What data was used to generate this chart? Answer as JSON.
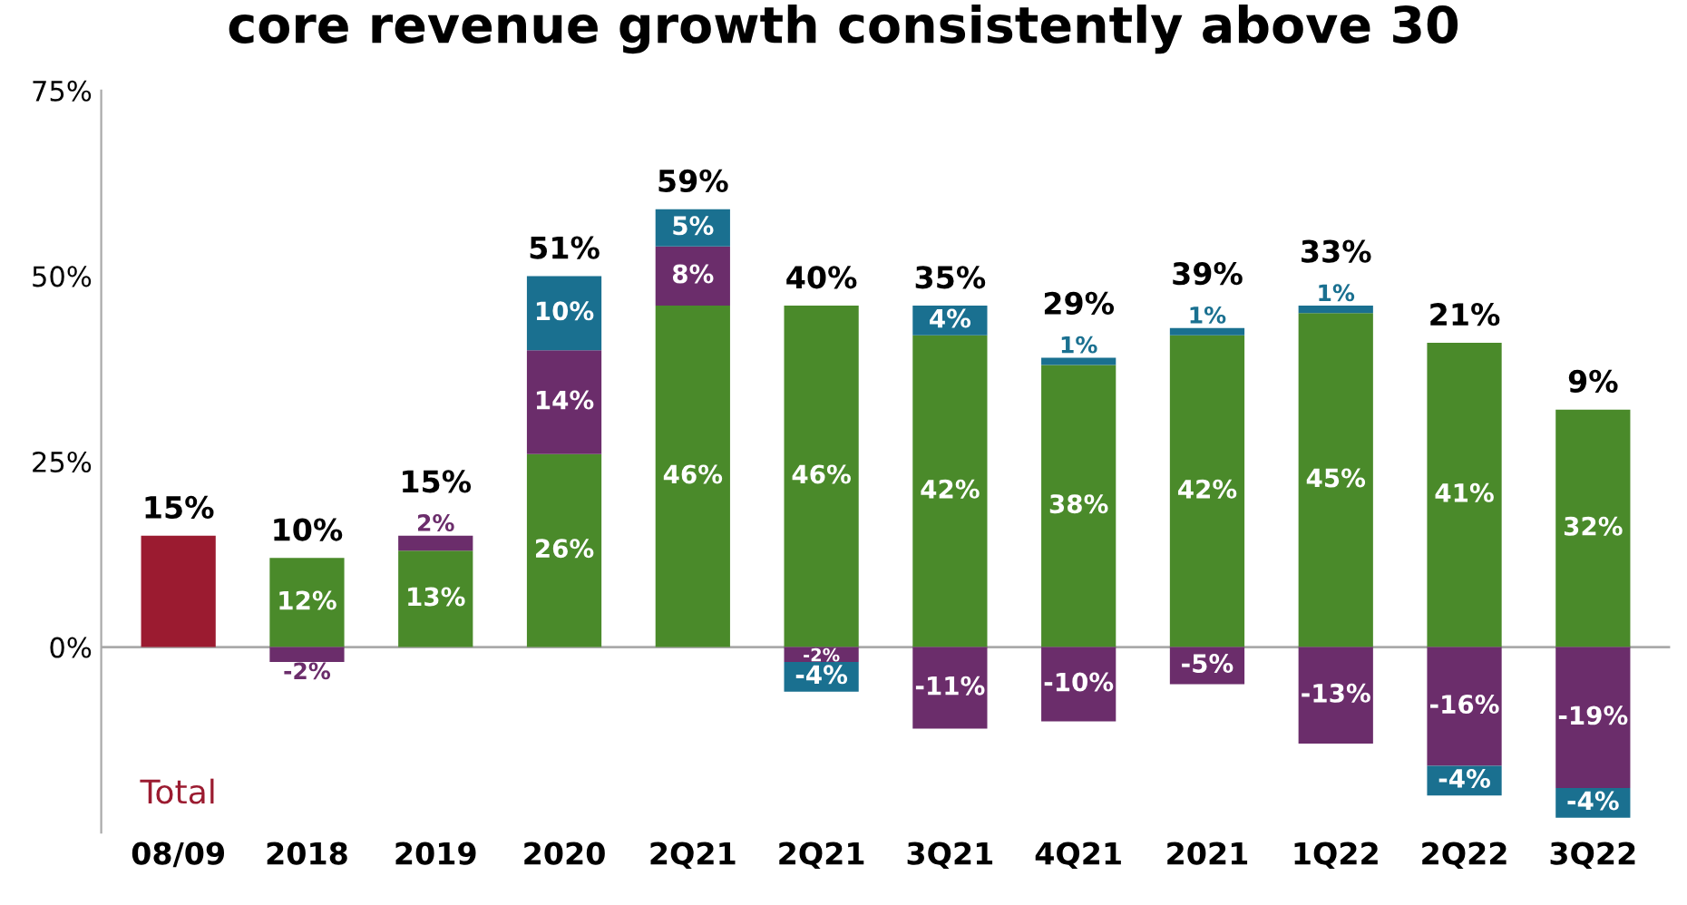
{
  "chart_data": {
    "type": "bar",
    "stacked": true,
    "title": "core revenue growth consistently above 30",
    "categories": [
      "08/09",
      "2018",
      "2019",
      "2020",
      "2Q21",
      "2Q21",
      "3Q21",
      "4Q21",
      "2021",
      "1Q22",
      "2Q22",
      "3Q22"
    ],
    "series": [
      {
        "name": "Total",
        "color": "#9b1b30",
        "values": [
          15,
          null,
          null,
          null,
          null,
          null,
          null,
          null,
          null,
          null,
          null,
          null
        ],
        "value_labels": [
          null,
          null,
          null,
          null,
          null,
          null,
          null,
          null,
          null,
          null,
          null,
          null
        ]
      },
      {
        "color": "#4a8a2a",
        "values": [
          null,
          12,
          13,
          26,
          46,
          46,
          42,
          38,
          42,
          45,
          41,
          32
        ],
        "value_labels": [
          null,
          "12%",
          "13%",
          "26%",
          "46%",
          "46%",
          "42%",
          "38%",
          "42%",
          "45%",
          "41%",
          "32%"
        ]
      },
      {
        "color": "#6b2d6b",
        "values": [
          null,
          -2,
          2,
          14,
          8,
          -2,
          -11,
          -10,
          -5,
          -13,
          -16,
          -19
        ],
        "value_labels": [
          null,
          "-2%",
          "2%",
          "14%",
          "8%",
          "-2%",
          "-11%",
          "-10%",
          "-5%",
          "-13%",
          "-16%",
          "-19%"
        ]
      },
      {
        "color": "#1a7090",
        "values": [
          null,
          null,
          null,
          10,
          5,
          -4,
          4,
          1,
          1,
          1,
          -4,
          -4
        ],
        "value_labels": [
          null,
          null,
          null,
          "10%",
          "5%",
          "-4%",
          "4%",
          "1%",
          "1%",
          "1%",
          "-4%",
          "-4%"
        ]
      }
    ],
    "totals": [
      "15%",
      "10%",
      "15%",
      "51%",
      "59%",
      "40%",
      "35%",
      "29%",
      "39%",
      "33%",
      "21%",
      "9%"
    ],
    "ylim": [
      -25,
      75
    ],
    "yticks": [
      {
        "value": 0,
        "label": "0%"
      },
      {
        "value": 25,
        "label": "25%"
      },
      {
        "value": 50,
        "label": "50%"
      },
      {
        "value": 75,
        "label": "75%"
      }
    ],
    "ref_lines": [
      {
        "axis": "y",
        "value": 0,
        "color": "#aaaaaa"
      }
    ],
    "grid": false,
    "legend": false
  }
}
